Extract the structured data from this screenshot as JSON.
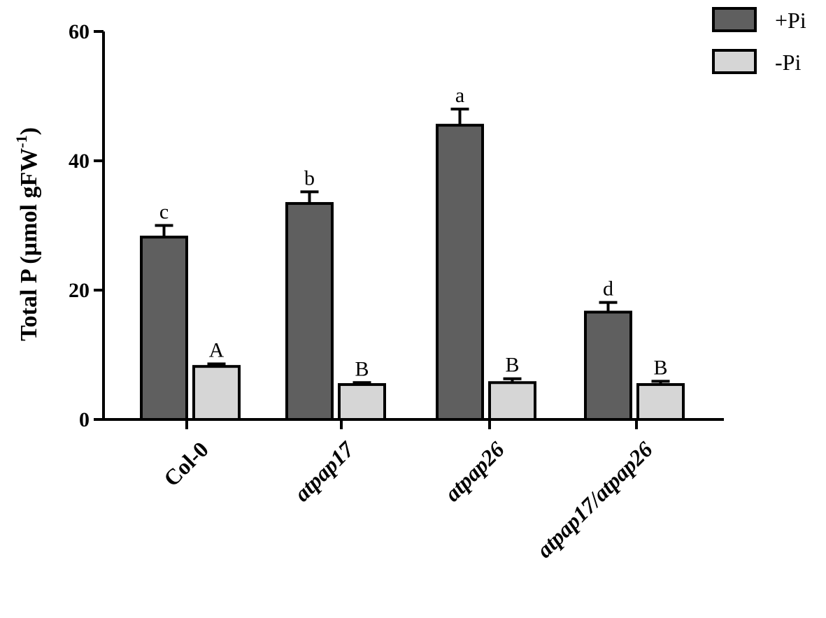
{
  "chart_data": {
    "type": "bar",
    "categories": [
      "Col-0",
      "atpap17",
      "atpap26",
      "atpap17/atpap26"
    ],
    "categories_italic": [
      false,
      true,
      true,
      true
    ],
    "ylabel": "Total P (µmol gFW",
    "ylabel_superscript": "-1",
    "ylabel_suffix": ")",
    "ylim": [
      0,
      60
    ],
    "yticks": [
      0,
      20,
      40,
      60
    ],
    "grid": false,
    "legend_position": "top-right",
    "series": [
      {
        "name": "+Pi",
        "color": "#5f5f5f",
        "values": [
          28.2,
          33.4,
          45.5,
          16.6
        ],
        "errors": [
          1.8,
          1.8,
          2.5,
          1.5
        ],
        "significance": [
          "c",
          "b",
          "a",
          "d"
        ]
      },
      {
        "name": "-Pi",
        "color": "#d6d6d6",
        "values": [
          8.2,
          5.4,
          5.7,
          5.4
        ],
        "errors": [
          0.4,
          0.3,
          0.6,
          0.5
        ],
        "significance": [
          "A",
          "B",
          "B",
          "B"
        ]
      }
    ]
  }
}
